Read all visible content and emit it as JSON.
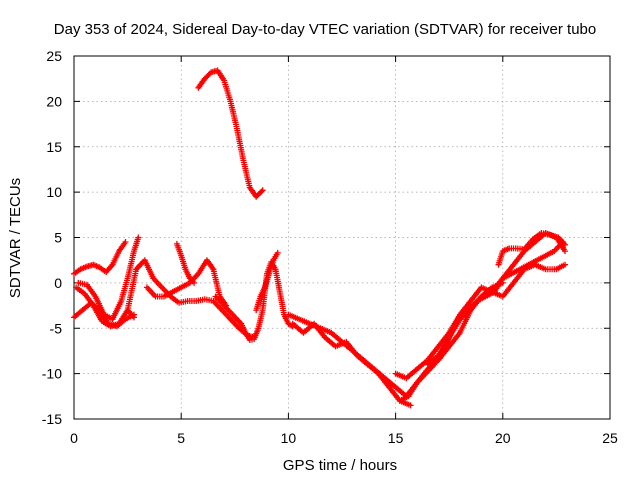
{
  "chart_data": {
    "type": "scatter",
    "title": "Day 353 of 2024, Sidereal Day-to-day VTEC variation (SDTVAR) for receiver tubo",
    "xlabel": "GPS time / hours",
    "ylabel": "SDTVAR / TECUs",
    "xlim": [
      0,
      25
    ],
    "ylim": [
      -15,
      25
    ],
    "xticks": [
      "0",
      "5",
      "10",
      "15",
      "20",
      "25"
    ],
    "yticks": [
      "-15",
      "-10",
      "-5",
      "0",
      "5",
      "10",
      "15",
      "20",
      "25"
    ],
    "grid": true,
    "series": [
      {
        "name": "SDTVAR",
        "color": "#ff0000",
        "marker": "plus",
        "tracks": [
          {
            "x": [
              5.8,
              6.1,
              6.4,
              6.7,
              7.0,
              7.3,
              7.6,
              7.9,
              8.2,
              8.5,
              8.8
            ],
            "y": [
              21.5,
              22.5,
              23.2,
              23.4,
              22.3,
              20.0,
              17.0,
              13.5,
              10.5,
              9.5,
              10.2
            ]
          },
          {
            "x": [
              0.0,
              0.3,
              0.6,
              0.9,
              1.2,
              1.5,
              1.8,
              2.1,
              2.4
            ],
            "y": [
              1.0,
              1.5,
              1.8,
              2.0,
              1.7,
              1.2,
              2.0,
              3.5,
              4.5
            ]
          },
          {
            "x": [
              0.0,
              0.4,
              0.8,
              1.2,
              1.6,
              2.0,
              2.4,
              2.8
            ],
            "y": [
              -3.8,
              -3.0,
              -2.2,
              -3.0,
              -4.5,
              -4.8,
              -4.0,
              -3.5
            ]
          },
          {
            "x": [
              0.2,
              0.6,
              1.0,
              1.4,
              1.8,
              2.2,
              2.5,
              2.8,
              3.0
            ],
            "y": [
              0.0,
              -0.2,
              -1.5,
              -3.5,
              -4.0,
              -2.0,
              0.5,
              3.5,
              5.0
            ]
          },
          {
            "x": [
              0.1,
              0.5,
              0.9,
              1.3,
              1.7,
              2.1,
              2.5,
              2.8
            ],
            "y": [
              -0.5,
              -1.2,
              -2.5,
              -4.2,
              -4.8,
              -4.5,
              -3.0,
              -3.8
            ]
          },
          {
            "x": [
              2.5,
              2.9,
              3.3,
              3.7,
              4.1,
              4.5,
              4.9,
              5.3,
              5.7,
              6.1,
              6.5,
              6.9,
              7.3,
              7.7,
              8.1,
              8.4
            ],
            "y": [
              -3.0,
              1.5,
              2.5,
              0.5,
              -0.5,
              -1.5,
              -2.2,
              -2.0,
              -2.0,
              -1.8,
              -2.0,
              -3.0,
              -4.0,
              -5.0,
              -5.8,
              -6.0
            ]
          },
          {
            "x": [
              3.4,
              3.8,
              4.2,
              4.6,
              5.0,
              5.4,
              5.8,
              6.2,
              6.5,
              6.8,
              7.1
            ],
            "y": [
              -0.5,
              -1.5,
              -1.5,
              -1.0,
              -0.5,
              0.0,
              1.0,
              2.5,
              1.5,
              -1.5,
              -2.5
            ]
          },
          {
            "x": [
              4.8,
              5.0,
              5.2,
              5.4,
              5.6
            ],
            "y": [
              4.3,
              3.0,
              1.5,
              0.5,
              0.0
            ]
          },
          {
            "x": [
              6.6,
              7.0,
              7.4,
              7.8,
              8.0,
              8.2,
              8.4,
              8.6,
              8.8,
              9.0,
              9.2,
              9.4,
              9.6,
              9.8,
              10.0,
              10.2
            ],
            "y": [
              -1.5,
              -2.5,
              -3.5,
              -4.5,
              -5.5,
              -6.3,
              -6.2,
              -5.0,
              -3.0,
              1.0,
              2.3,
              1.5,
              -1.0,
              -3.5,
              -4.5,
              -4.8
            ]
          },
          {
            "x": [
              8.5,
              8.7,
              8.9,
              9.1,
              9.3,
              9.5
            ],
            "y": [
              -3.0,
              -1.5,
              -0.5,
              1.0,
              2.5,
              3.3
            ]
          },
          {
            "x": [
              10.0,
              10.5,
              11.0,
              11.5,
              12.0,
              12.5,
              13.0,
              13.5,
              14.0,
              14.5,
              15.0,
              15.5,
              16.0,
              16.5,
              17.0,
              17.5,
              18.0,
              18.5,
              19.0,
              19.5,
              20.0
            ],
            "y": [
              -3.5,
              -4.0,
              -4.5,
              -5.0,
              -5.5,
              -6.5,
              -7.5,
              -8.5,
              -9.5,
              -10.5,
              -11.5,
              -12.5,
              -11.0,
              -9.5,
              -8.5,
              -7.0,
              -5.5,
              -3.0,
              -1.5,
              -0.5,
              0.0
            ]
          },
          {
            "x": [
              10.2,
              10.7,
              11.2,
              11.7,
              12.2,
              12.7,
              13.2,
              13.7,
              14.2,
              14.7,
              15.2,
              15.7
            ],
            "y": [
              -4.5,
              -5.5,
              -4.5,
              -6.0,
              -7.0,
              -6.5,
              -8.0,
              -9.0,
              -10.0,
              -11.5,
              -13.0,
              -13.5
            ]
          },
          {
            "x": [
              15.2,
              15.6,
              16.0,
              16.4,
              16.8,
              17.2,
              17.6,
              18.0,
              18.4,
              18.8,
              19.2,
              19.6,
              20.0,
              20.4,
              20.8,
              21.2,
              21.6,
              22.0,
              22.4,
              22.8
            ],
            "y": [
              -13.0,
              -12.5,
              -11.0,
              -10.0,
              -9.0,
              -7.5,
              -5.5,
              -4.0,
              -3.0,
              -2.0,
              -1.5,
              -1.0,
              0.5,
              1.0,
              1.5,
              2.0,
              2.5,
              3.0,
              3.5,
              4.5
            ]
          },
          {
            "x": [
              15.0,
              15.5,
              16.0,
              16.5,
              17.0,
              17.5,
              18.0,
              18.5,
              19.0,
              19.5,
              20.0,
              20.5,
              21.0,
              21.5,
              22.0,
              22.5,
              22.9
            ],
            "y": [
              -10.0,
              -10.5,
              -9.5,
              -8.5,
              -7.0,
              -5.5,
              -3.5,
              -2.0,
              -0.5,
              -1.0,
              -1.5,
              0.0,
              1.5,
              2.0,
              1.5,
              1.5,
              2.0
            ]
          },
          {
            "x": [
              16.5,
              17.0,
              17.5,
              18.0,
              18.5,
              19.0,
              19.5,
              20.0,
              20.5,
              21.0,
              21.5,
              22.0,
              22.5,
              22.9
            ],
            "y": [
              -9.0,
              -8.0,
              -6.0,
              -4.0,
              -3.0,
              -1.5,
              -1.0,
              0.5,
              2.0,
              3.5,
              4.5,
              5.5,
              5.0,
              3.5
            ]
          },
          {
            "x": [
              19.8,
              20.0,
              20.3,
              20.6,
              21.0,
              21.4,
              21.8,
              22.2,
              22.6,
              22.9
            ],
            "y": [
              2.0,
              3.5,
              3.8,
              3.8,
              3.7,
              4.8,
              5.5,
              5.3,
              5.0,
              4.2
            ]
          }
        ]
      }
    ]
  }
}
